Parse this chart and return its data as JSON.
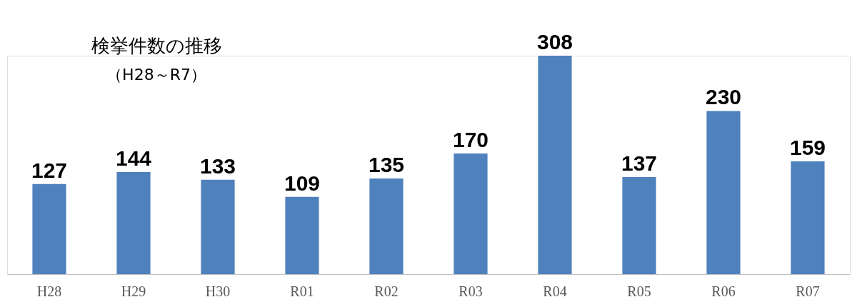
{
  "chart_data": {
    "type": "bar",
    "title": "検挙件数の推移",
    "subtitle": "（H28～R7）",
    "categories": [
      "H28",
      "H29",
      "H30",
      "R01",
      "R02",
      "R03",
      "R04",
      "R05",
      "R06",
      "R07"
    ],
    "values": [
      127,
      144,
      133,
      109,
      135,
      170,
      308,
      137,
      230,
      159
    ],
    "color": "#4f81bd",
    "data_labels": true
  }
}
